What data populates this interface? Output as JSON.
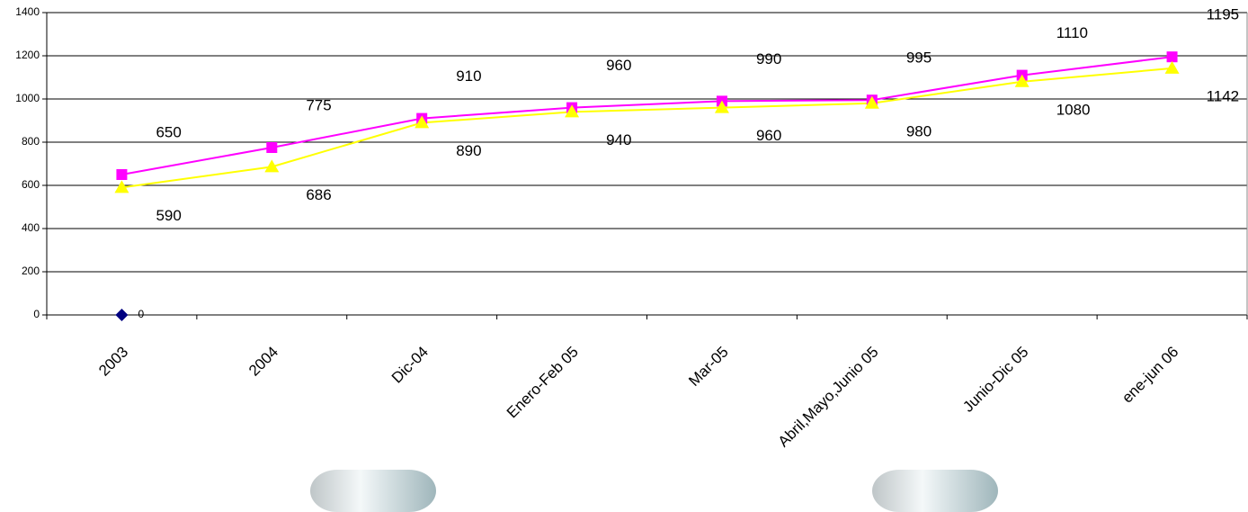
{
  "chart_data": {
    "type": "line",
    "categories": [
      "2003",
      "2004",
      "Dic-04",
      "Enero-Feb 05",
      "Mar-05",
      "Abril,Mayo,Junio 05",
      "Junio-Dic 05",
      "ene-jun 06"
    ],
    "series": [
      {
        "color": "#000080",
        "marker": "diamond",
        "values": [
          0,
          null,
          null,
          null,
          null,
          null,
          null,
          null
        ]
      },
      {
        "color": "#ff00ff",
        "marker": "square",
        "values": [
          650,
          775,
          910,
          960,
          990,
          995,
          1110,
          1195
        ]
      },
      {
        "color": "#ffff00",
        "marker": "triangle",
        "values": [
          590,
          686,
          890,
          940,
          960,
          980,
          1080,
          1142
        ]
      }
    ],
    "ylim": [
      0,
      1400
    ],
    "yticks": [
      0,
      200,
      400,
      600,
      800,
      1000,
      1200,
      1400
    ],
    "grid": true
  }
}
